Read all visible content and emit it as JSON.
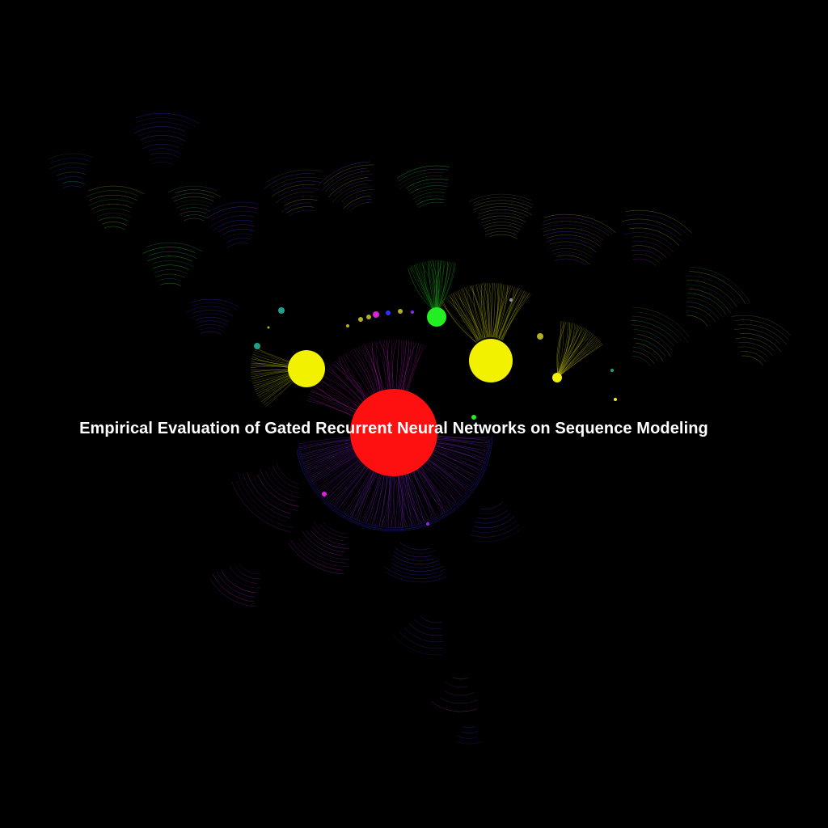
{
  "graph": {
    "title": "Empirical Evaluation of Gated Recurrent Neural Networks on Sequence Modeling",
    "background": "#000000",
    "palette": {
      "red": "#ff1010",
      "yellow": "#f2f200",
      "green": "#22ee22",
      "magenta": "#dd22dd",
      "purple": "#8a2be2",
      "blue": "#3030ff",
      "teal": "#1fa08a",
      "olive": "#b0b020",
      "gray": "#999999"
    }
  }
}
